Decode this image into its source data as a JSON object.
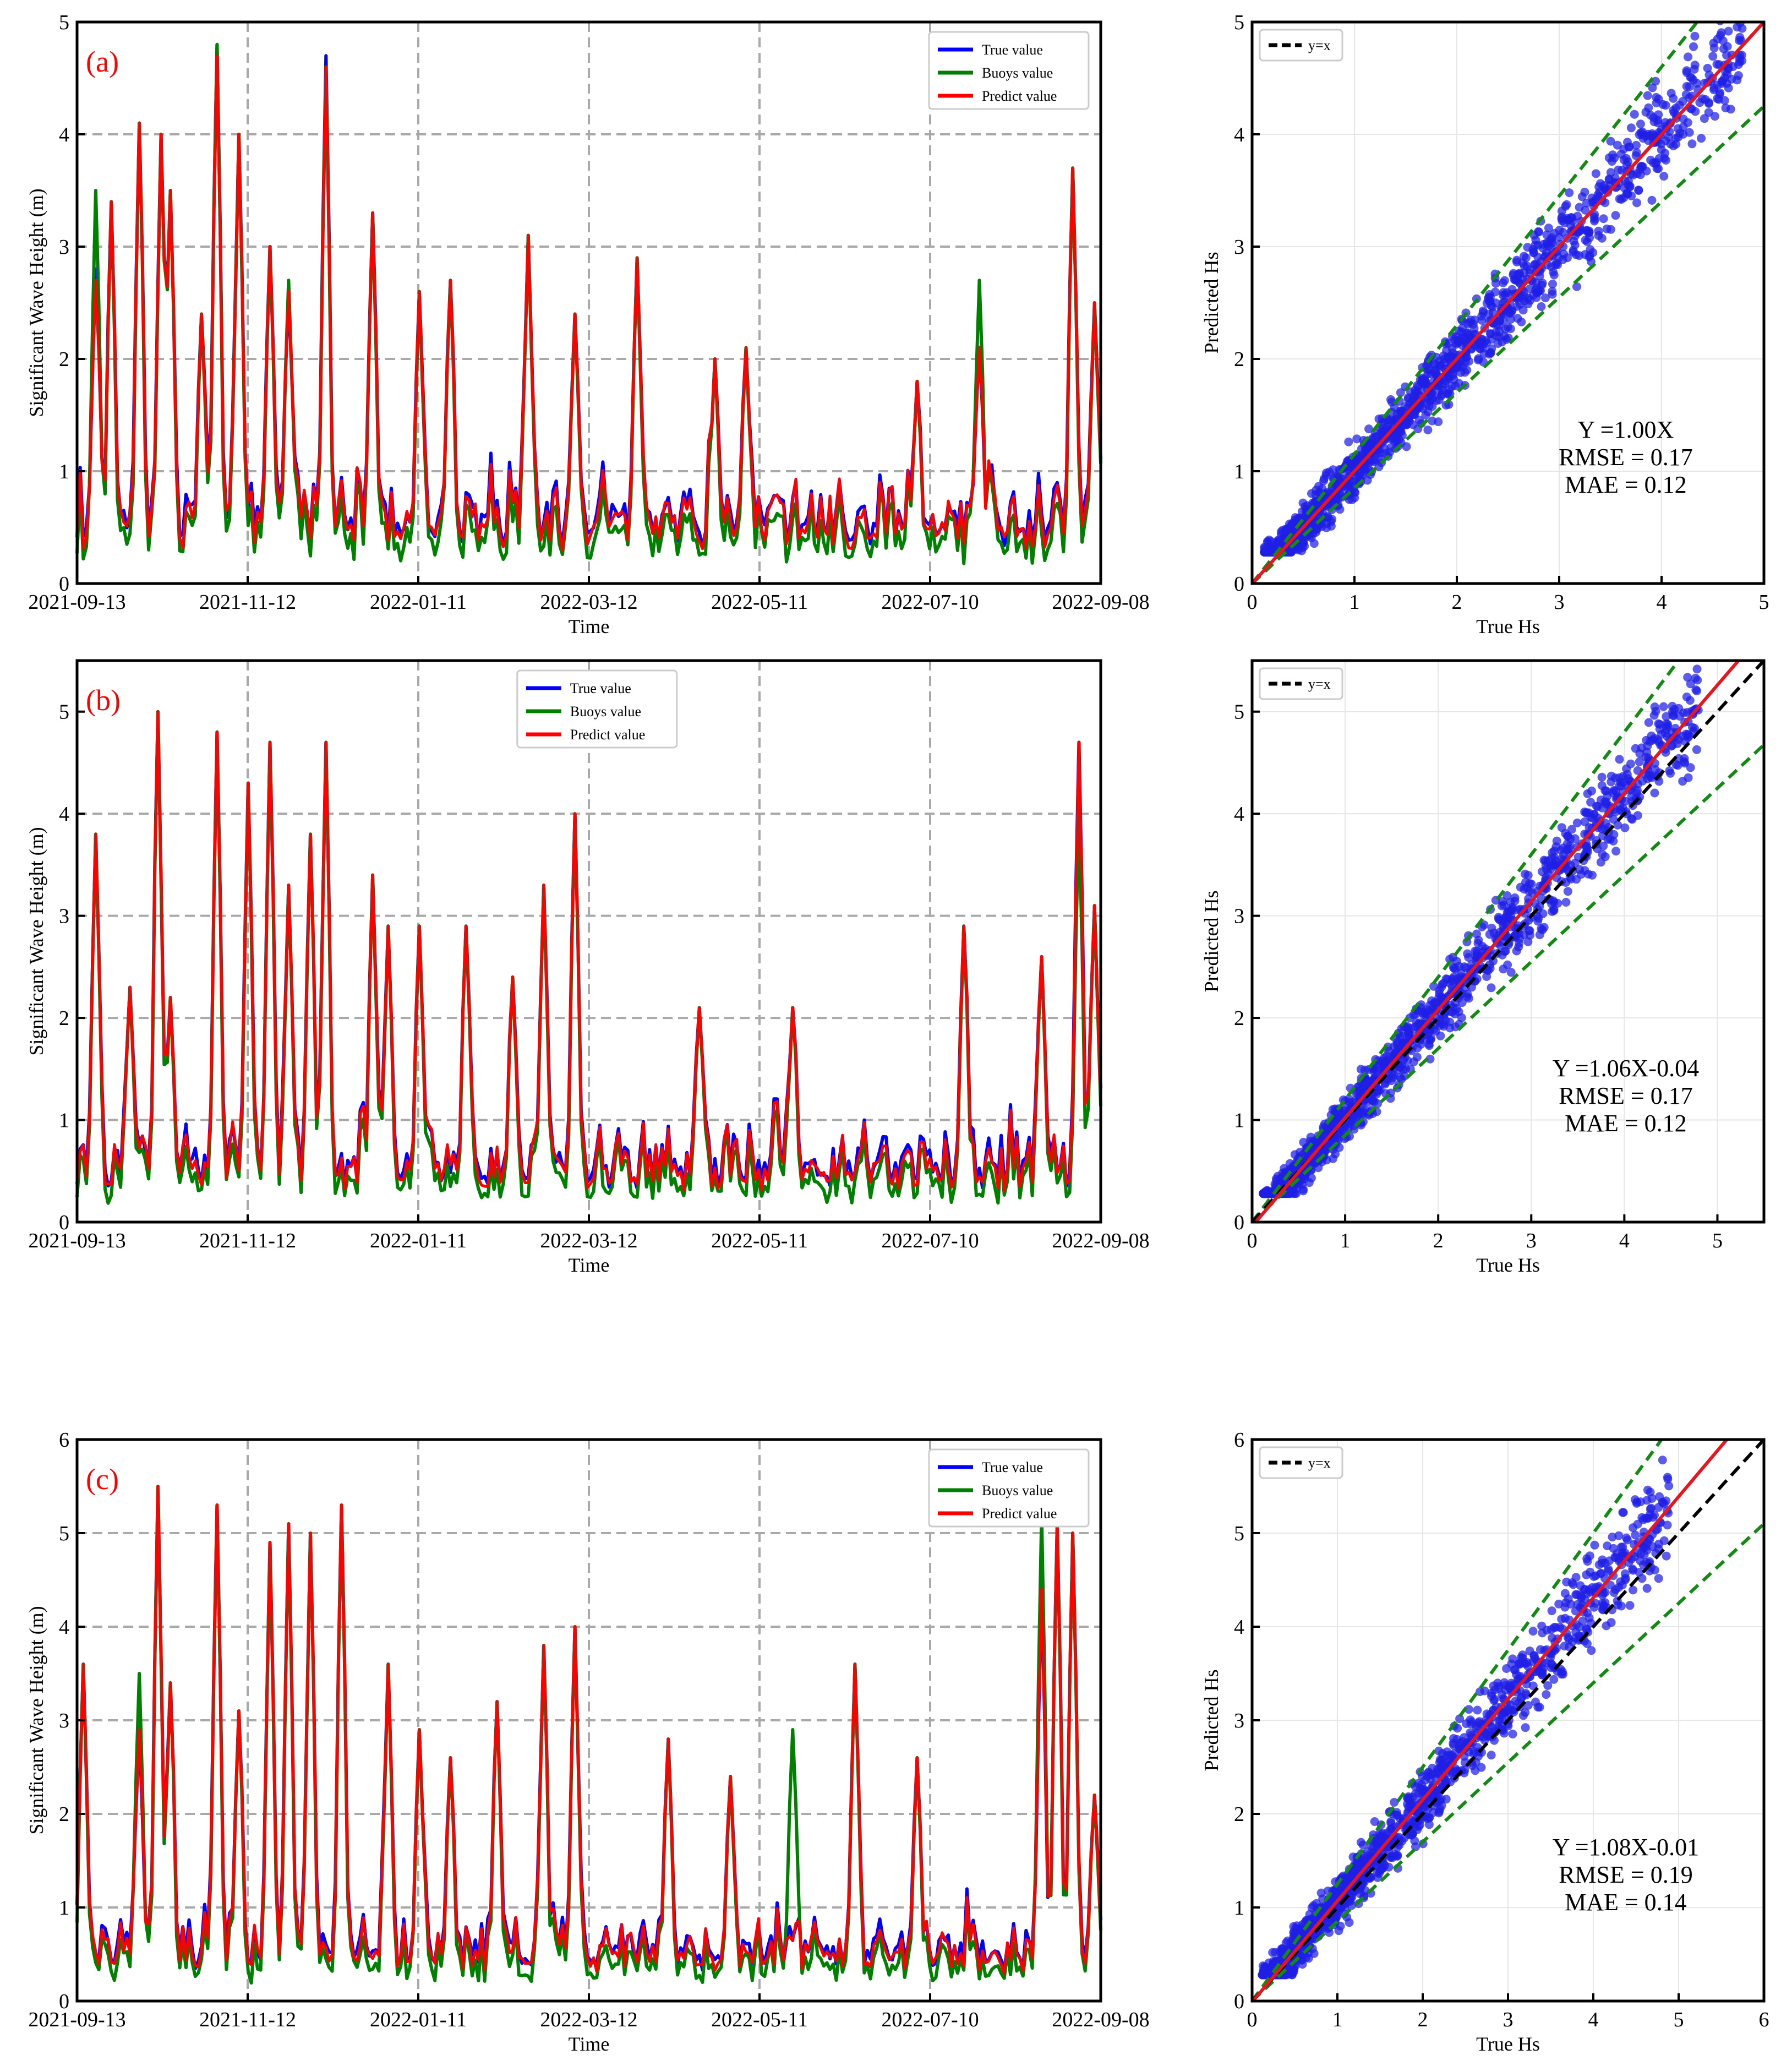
{
  "colors": {
    "true": "#0000ff",
    "buoys": "#008000",
    "predict": "#ff0000",
    "scatter": "#1f1fe6",
    "fit": "#e8141e",
    "identity": "#000000",
    "band": "#138a13",
    "grid": "#a9a9a9"
  },
  "chart_data": [
    {
      "id": "a-time",
      "type": "line",
      "panel_label": "(a)",
      "xlabel": "Time",
      "ylabel": "Significant Wave Height (m)",
      "ylim": [
        0,
        5
      ],
      "yticks": [
        "0",
        "1",
        "2",
        "3",
        "4",
        "5"
      ],
      "categories": [
        "2021-09-13",
        "2021-11-12",
        "2022-01-11",
        "2022-03-12",
        "2022-05-11",
        "2022-07-10",
        "2022-09-08"
      ],
      "legend": [
        "True value",
        "Buoys value",
        "Predict value"
      ],
      "legend_position": "top-right",
      "seed": 11,
      "series": [
        {
          "name": "True value",
          "peaks": [
            [
              6,
              2.8
            ],
            [
              11,
              3.4
            ],
            [
              20,
              4.1
            ],
            [
              27,
              4.0
            ],
            [
              30,
              3.5
            ],
            [
              40,
              2.4
            ],
            [
              45,
              4.8
            ],
            [
              52,
              4.0
            ],
            [
              62,
              3.0
            ],
            [
              68,
              2.6
            ],
            [
              80,
              4.7
            ],
            [
              95,
              3.3
            ],
            [
              110,
              2.6
            ],
            [
              120,
              2.7
            ],
            [
              145,
              3.1
            ],
            [
              160,
              2.4
            ],
            [
              180,
              2.9
            ],
            [
              205,
              2.0
            ],
            [
              215,
              2.1
            ],
            [
              270,
              1.8
            ],
            [
              290,
              2.1
            ],
            [
              320,
              3.7
            ],
            [
              327,
              2.5
            ]
          ]
        },
        {
          "name": "Buoys value",
          "peaks": [
            [
              6,
              3.5
            ],
            [
              11,
              3.4
            ],
            [
              20,
              4.1
            ],
            [
              27,
              4.0
            ],
            [
              30,
              3.5
            ],
            [
              40,
              2.4
            ],
            [
              45,
              4.8
            ],
            [
              52,
              4.0
            ],
            [
              62,
              3.0
            ],
            [
              68,
              2.7
            ],
            [
              80,
              4.6
            ],
            [
              95,
              3.3
            ],
            [
              110,
              2.6
            ],
            [
              120,
              2.7
            ],
            [
              145,
              3.1
            ],
            [
              160,
              2.4
            ],
            [
              180,
              2.9
            ],
            [
              205,
              2.0
            ],
            [
              215,
              2.1
            ],
            [
              270,
              1.8
            ],
            [
              290,
              2.7
            ],
            [
              320,
              3.7
            ],
            [
              327,
              2.5
            ]
          ]
        },
        {
          "name": "Predict value",
          "peaks": [
            [
              6,
              2.7
            ],
            [
              11,
              3.4
            ],
            [
              20,
              4.1
            ],
            [
              27,
              4.0
            ],
            [
              30,
              3.5
            ],
            [
              40,
              2.4
            ],
            [
              45,
              4.7
            ],
            [
              52,
              4.0
            ],
            [
              62,
              3.0
            ],
            [
              68,
              2.6
            ],
            [
              80,
              4.6
            ],
            [
              95,
              3.3
            ],
            [
              110,
              2.6
            ],
            [
              120,
              2.7
            ],
            [
              145,
              3.1
            ],
            [
              160,
              2.4
            ],
            [
              180,
              2.9
            ],
            [
              205,
              2.0
            ],
            [
              215,
              2.1
            ],
            [
              270,
              1.8
            ],
            [
              290,
              2.1
            ],
            [
              320,
              3.7
            ],
            [
              327,
              2.5
            ]
          ]
        }
      ]
    },
    {
      "id": "a-scatter",
      "type": "scatter",
      "xlabel": "True Hs",
      "ylabel": "Predicted Hs",
      "xlim": [
        0,
        5
      ],
      "ylim": [
        0,
        5
      ],
      "xticks": [
        "0",
        "1",
        "2",
        "3",
        "4",
        "5"
      ],
      "yticks": [
        "0",
        "1",
        "2",
        "3",
        "4",
        "5"
      ],
      "legend": [
        "y=x"
      ],
      "legend_position": "top-left",
      "fit": {
        "slope": 1.0,
        "intercept": 0.0
      },
      "band": {
        "upper_slope": 1.15,
        "lower_slope": 0.85
      },
      "point_count": 1500,
      "noise": 0.17,
      "x_max": 4.8,
      "seed": 21,
      "stats": [
        "Y =1.00X",
        "RMSE = 0.17",
        "MAE  = 0.12"
      ]
    },
    {
      "id": "b-time",
      "type": "line",
      "panel_label": "(b)",
      "xlabel": "Time",
      "ylabel": "Significant Wave Height (m)",
      "ylim": [
        0,
        5.5
      ],
      "yticks": [
        "0",
        "1",
        "2",
        "3",
        "4",
        "5"
      ],
      "categories": [
        "2021-09-13",
        "2021-11-12",
        "2022-01-11",
        "2022-03-12",
        "2022-05-11",
        "2022-07-10",
        "2022-09-08"
      ],
      "legend": [
        "True value",
        "Buoys value",
        "Predict value"
      ],
      "legend_position": "top-center",
      "seed": 12,
      "series": [
        {
          "name": "True value",
          "peaks": [
            [
              6,
              3.8
            ],
            [
              17,
              2.3
            ],
            [
              26,
              5.0
            ],
            [
              30,
              2.2
            ],
            [
              45,
              4.8
            ],
            [
              55,
              4.3
            ],
            [
              62,
              4.7
            ],
            [
              68,
              3.3
            ],
            [
              75,
              3.8
            ],
            [
              80,
              4.7
            ],
            [
              95,
              3.4
            ],
            [
              100,
              2.9
            ],
            [
              110,
              2.9
            ],
            [
              125,
              2.9
            ],
            [
              140,
              2.4
            ],
            [
              150,
              3.3
            ],
            [
              160,
              4.0
            ],
            [
              200,
              2.1
            ],
            [
              230,
              2.1
            ],
            [
              285,
              2.9
            ],
            [
              310,
              2.6
            ],
            [
              322,
              4.7
            ],
            [
              327,
              3.1
            ]
          ]
        },
        {
          "name": "Buoys value",
          "peaks": [
            [
              6,
              3.8
            ],
            [
              17,
              2.3
            ],
            [
              26,
              5.0
            ],
            [
              30,
              2.2
            ],
            [
              45,
              4.8
            ],
            [
              55,
              4.3
            ],
            [
              62,
              4.7
            ],
            [
              68,
              3.3
            ],
            [
              75,
              3.8
            ],
            [
              80,
              4.7
            ],
            [
              95,
              3.4
            ],
            [
              100,
              2.9
            ],
            [
              110,
              2.9
            ],
            [
              125,
              2.9
            ],
            [
              140,
              2.4
            ],
            [
              150,
              3.3
            ],
            [
              160,
              4.0
            ],
            [
              200,
              2.1
            ],
            [
              230,
              2.1
            ],
            [
              285,
              2.9
            ],
            [
              310,
              2.6
            ],
            [
              322,
              4.0
            ],
            [
              327,
              3.1
            ]
          ]
        },
        {
          "name": "Predict value",
          "peaks": [
            [
              6,
              3.8
            ],
            [
              17,
              2.3
            ],
            [
              26,
              5.0
            ],
            [
              30,
              2.2
            ],
            [
              45,
              4.8
            ],
            [
              55,
              4.3
            ],
            [
              62,
              4.7
            ],
            [
              68,
              3.3
            ],
            [
              75,
              3.8
            ],
            [
              80,
              4.7
            ],
            [
              95,
              3.4
            ],
            [
              100,
              2.9
            ],
            [
              110,
              2.9
            ],
            [
              125,
              2.9
            ],
            [
              140,
              2.4
            ],
            [
              150,
              3.3
            ],
            [
              160,
              4.0
            ],
            [
              200,
              2.1
            ],
            [
              230,
              2.1
            ],
            [
              285,
              2.9
            ],
            [
              310,
              2.6
            ],
            [
              322,
              4.7
            ],
            [
              327,
              3.1
            ]
          ]
        }
      ]
    },
    {
      "id": "b-scatter",
      "type": "scatter",
      "xlabel": "True Hs",
      "ylabel": "Predicted Hs",
      "xlim": [
        0,
        5.5
      ],
      "ylim": [
        0,
        5.5
      ],
      "xticks": [
        "0",
        "1",
        "2",
        "3",
        "4",
        "5"
      ],
      "yticks": [
        "0",
        "1",
        "2",
        "3",
        "4",
        "5"
      ],
      "legend": [
        "y=x"
      ],
      "legend_position": "top-left",
      "fit": {
        "slope": 1.06,
        "intercept": -0.04
      },
      "band": {
        "upper_slope": 1.2,
        "lower_slope": 0.85
      },
      "point_count": 1500,
      "noise": 0.17,
      "x_max": 4.8,
      "seed": 22,
      "stats": [
        "Y =1.06X-0.04",
        "RMSE = 0.17",
        "MAE  = 0.12"
      ]
    },
    {
      "id": "c-time",
      "type": "line",
      "panel_label": "(c)",
      "xlabel": "Time",
      "ylabel": "Significant Wave Height (m)",
      "ylim": [
        0,
        6
      ],
      "yticks": [
        "0",
        "1",
        "2",
        "3",
        "4",
        "5",
        "6"
      ],
      "categories": [
        "2021-09-13",
        "2021-11-12",
        "2022-01-11",
        "2022-03-12",
        "2022-05-11",
        "2022-07-10",
        "2022-09-08"
      ],
      "legend": [
        "True value",
        "Buoys value",
        "Predict value"
      ],
      "legend_position": "top-right",
      "seed": 13,
      "series": [
        {
          "name": "True value",
          "peaks": [
            [
              2,
              3.6
            ],
            [
              20,
              2.9
            ],
            [
              26,
              5.5
            ],
            [
              30,
              3.4
            ],
            [
              45,
              5.3
            ],
            [
              52,
              3.1
            ],
            [
              62,
              4.9
            ],
            [
              68,
              5.1
            ],
            [
              75,
              5.0
            ],
            [
              85,
              5.3
            ],
            [
              100,
              3.6
            ],
            [
              110,
              2.9
            ],
            [
              120,
              2.6
            ],
            [
              135,
              3.2
            ],
            [
              150,
              3.8
            ],
            [
              160,
              4.0
            ],
            [
              190,
              2.8
            ],
            [
              210,
              2.4
            ],
            [
              250,
              3.6
            ],
            [
              270,
              2.6
            ],
            [
              310,
              4.4
            ],
            [
              315,
              5.1
            ],
            [
              320,
              5.0
            ],
            [
              327,
              2.2
            ]
          ]
        },
        {
          "name": "Buoys value",
          "peaks": [
            [
              2,
              3.6
            ],
            [
              20,
              3.5
            ],
            [
              26,
              5.5
            ],
            [
              30,
              3.4
            ],
            [
              45,
              5.3
            ],
            [
              52,
              3.1
            ],
            [
              62,
              4.9
            ],
            [
              68,
              5.1
            ],
            [
              75,
              5.0
            ],
            [
              85,
              5.3
            ],
            [
              100,
              3.6
            ],
            [
              110,
              2.9
            ],
            [
              120,
              2.6
            ],
            [
              135,
              3.2
            ],
            [
              150,
              3.8
            ],
            [
              160,
              4.0
            ],
            [
              190,
              2.8
            ],
            [
              210,
              2.4
            ],
            [
              230,
              2.9
            ],
            [
              250,
              3.6
            ],
            [
              270,
              2.6
            ],
            [
              310,
              5.2
            ],
            [
              315,
              5.1
            ],
            [
              320,
              5.0
            ],
            [
              327,
              2.2
            ]
          ]
        },
        {
          "name": "Predict value",
          "peaks": [
            [
              2,
              3.6
            ],
            [
              20,
              2.9
            ],
            [
              26,
              5.5
            ],
            [
              30,
              3.4
            ],
            [
              45,
              5.3
            ],
            [
              52,
              3.1
            ],
            [
              62,
              4.9
            ],
            [
              68,
              5.1
            ],
            [
              75,
              5.0
            ],
            [
              85,
              5.3
            ],
            [
              100,
              3.6
            ],
            [
              110,
              2.9
            ],
            [
              120,
              2.6
            ],
            [
              135,
              3.2
            ],
            [
              150,
              3.8
            ],
            [
              160,
              4.0
            ],
            [
              190,
              2.8
            ],
            [
              210,
              2.4
            ],
            [
              250,
              3.6
            ],
            [
              270,
              2.6
            ],
            [
              310,
              4.4
            ],
            [
              315,
              5.1
            ],
            [
              320,
              5.0
            ],
            [
              327,
              2.2
            ]
          ]
        }
      ]
    },
    {
      "id": "c-scatter",
      "type": "scatter",
      "xlabel": "True Hs",
      "ylabel": "Predicted Hs",
      "xlim": [
        0,
        6
      ],
      "ylim": [
        0,
        6
      ],
      "xticks": [
        "0",
        "1",
        "2",
        "3",
        "4",
        "5",
        "6"
      ],
      "yticks": [
        "0",
        "1",
        "2",
        "3",
        "4",
        "5",
        "6"
      ],
      "legend": [
        "y=x"
      ],
      "legend_position": "top-left",
      "fit": {
        "slope": 1.08,
        "intercept": -0.01
      },
      "band": {
        "upper_slope": 1.25,
        "lower_slope": 0.85
      },
      "point_count": 1500,
      "noise": 0.19,
      "x_max": 4.9,
      "seed": 23,
      "stats": [
        "Y =1.08X-0.01",
        "RMSE = 0.19",
        "MAE  = 0.14"
      ]
    }
  ]
}
